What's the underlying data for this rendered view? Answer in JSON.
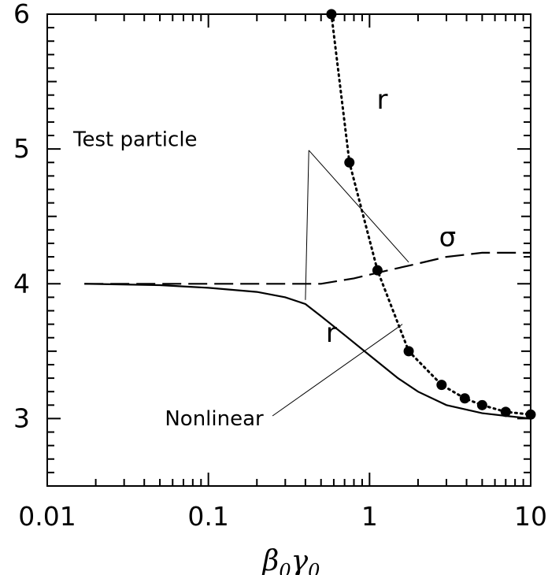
{
  "chart_data": {
    "type": "line",
    "xlabel": {
      "main1": "β",
      "sub1": "0",
      "main2": "γ",
      "sub2": "0"
    },
    "xscale": "log",
    "xlim": [
      0.01,
      10
    ],
    "ylim": [
      2.5,
      6
    ],
    "x_tick_labels": [
      "0.01",
      "0.1",
      "1",
      "10"
    ],
    "y_tick_labels": [
      "3",
      "4",
      "5",
      "6"
    ],
    "series": [
      {
        "id": "test-particle-r",
        "style": "dotted-with-markers",
        "points": [
          [
            0.58,
            6.0
          ],
          [
            0.75,
            4.9
          ],
          [
            1.12,
            4.1
          ],
          [
            1.75,
            3.5
          ],
          [
            2.8,
            3.25
          ],
          [
            3.9,
            3.15
          ],
          [
            5.0,
            3.1
          ],
          [
            7.0,
            3.05
          ],
          [
            10.0,
            3.03
          ]
        ]
      },
      {
        "id": "nonlinear-sigma",
        "style": "dashed",
        "points": [
          [
            0.017,
            4.0
          ],
          [
            0.1,
            4.0
          ],
          [
            0.3,
            4.0
          ],
          [
            0.5,
            4.0
          ],
          [
            0.8,
            4.04
          ],
          [
            1.2,
            4.09
          ],
          [
            2.0,
            4.15
          ],
          [
            3.0,
            4.2
          ],
          [
            5.0,
            4.23
          ],
          [
            7.0,
            4.23
          ],
          [
            10.0,
            4.23
          ]
        ]
      },
      {
        "id": "nonlinear-r",
        "style": "solid",
        "points": [
          [
            0.017,
            4.0
          ],
          [
            0.05,
            3.99
          ],
          [
            0.1,
            3.97
          ],
          [
            0.2,
            3.94
          ],
          [
            0.3,
            3.9
          ],
          [
            0.4,
            3.85
          ],
          [
            0.5,
            3.76
          ],
          [
            0.7,
            3.62
          ],
          [
            1.0,
            3.47
          ],
          [
            1.5,
            3.3
          ],
          [
            2.0,
            3.2
          ],
          [
            3.0,
            3.1
          ],
          [
            5.0,
            3.04
          ],
          [
            7.0,
            3.02
          ],
          [
            10.0,
            3.0
          ]
        ]
      }
    ],
    "curve_labels": [
      {
        "text": "r",
        "x": 1.2,
        "y": 5.3
      },
      {
        "text": "σ",
        "x": 3.05,
        "y": 4.28
      },
      {
        "text": "r",
        "x": 0.58,
        "y": 3.57
      }
    ],
    "annotations": [
      {
        "text": "Test particle",
        "x": 0.0145,
        "y": 5.02,
        "anchor": "start",
        "pointer_start": [
          0.42,
          4.99
        ],
        "pointer_targets": [
          [
            0.4,
            3.88
          ],
          [
            1.75,
            4.16
          ]
        ]
      },
      {
        "text": "Nonlinear",
        "x": 0.22,
        "y": 2.95,
        "anchor": "end",
        "pointer_start": [
          0.25,
          3.02
        ],
        "pointer_targets": [
          [
            1.6,
            3.7
          ]
        ]
      }
    ]
  }
}
